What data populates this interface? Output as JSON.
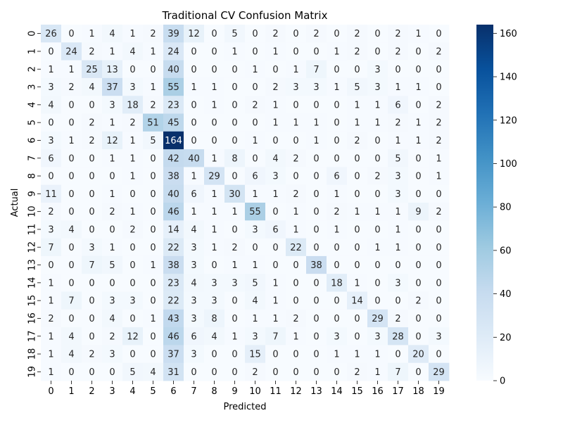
{
  "chart_data": {
    "type": "heatmap",
    "title": "Traditional CV Confusion Matrix",
    "xlabel": "Predicted",
    "ylabel": "Actual",
    "x_categories": [
      "0",
      "1",
      "2",
      "3",
      "4",
      "5",
      "6",
      "7",
      "8",
      "9",
      "10",
      "11",
      "12",
      "13",
      "14",
      "15",
      "16",
      "17",
      "18",
      "19"
    ],
    "y_categories": [
      "0",
      "1",
      "2",
      "3",
      "4",
      "5",
      "6",
      "7",
      "8",
      "9",
      "10",
      "11",
      "12",
      "13",
      "14",
      "15",
      "16",
      "17",
      "18",
      "19"
    ],
    "values": [
      [
        26,
        0,
        1,
        4,
        1,
        2,
        39,
        12,
        0,
        5,
        0,
        2,
        0,
        2,
        0,
        2,
        0,
        2,
        1,
        0
      ],
      [
        0,
        24,
        2,
        1,
        4,
        1,
        24,
        0,
        0,
        1,
        0,
        1,
        0,
        0,
        1,
        2,
        0,
        2,
        0,
        2
      ],
      [
        1,
        1,
        25,
        13,
        0,
        0,
        40,
        0,
        0,
        0,
        1,
        0,
        1,
        7,
        0,
        0,
        3,
        0,
        0,
        0
      ],
      [
        3,
        2,
        4,
        37,
        3,
        1,
        55,
        1,
        1,
        0,
        0,
        2,
        3,
        3,
        1,
        5,
        3,
        1,
        1,
        0
      ],
      [
        4,
        0,
        0,
        3,
        18,
        2,
        23,
        0,
        1,
        0,
        2,
        1,
        0,
        0,
        0,
        1,
        1,
        6,
        0,
        2
      ],
      [
        0,
        0,
        2,
        1,
        2,
        51,
        45,
        0,
        0,
        0,
        0,
        1,
        1,
        1,
        0,
        1,
        1,
        2,
        1,
        2
      ],
      [
        3,
        1,
        2,
        12,
        1,
        5,
        164,
        0,
        0,
        0,
        1,
        0,
        0,
        1,
        0,
        2,
        0,
        1,
        1,
        2
      ],
      [
        6,
        0,
        0,
        1,
        1,
        0,
        42,
        40,
        1,
        8,
        0,
        4,
        2,
        0,
        0,
        0,
        0,
        5,
        0,
        1
      ],
      [
        0,
        0,
        0,
        0,
        1,
        0,
        38,
        1,
        29,
        0,
        6,
        3,
        0,
        0,
        6,
        0,
        2,
        3,
        0,
        1
      ],
      [
        11,
        0,
        0,
        1,
        0,
        0,
        40,
        6,
        1,
        30,
        1,
        1,
        2,
        0,
        1,
        0,
        0,
        3,
        0,
        0
      ],
      [
        2,
        0,
        0,
        2,
        1,
        0,
        46,
        1,
        1,
        1,
        55,
        0,
        1,
        0,
        2,
        1,
        1,
        1,
        9,
        2
      ],
      [
        3,
        4,
        0,
        0,
        2,
        0,
        14,
        4,
        1,
        0,
        3,
        6,
        1,
        0,
        1,
        0,
        0,
        1,
        0,
        0
      ],
      [
        7,
        0,
        3,
        1,
        0,
        0,
        22,
        3,
        1,
        2,
        0,
        0,
        22,
        0,
        0,
        0,
        1,
        1,
        0,
        0
      ],
      [
        0,
        0,
        7,
        5,
        0,
        1,
        38,
        3,
        0,
        1,
        1,
        0,
        0,
        38,
        0,
        0,
        0,
        0,
        0,
        0
      ],
      [
        1,
        0,
        0,
        0,
        0,
        0,
        23,
        4,
        3,
        3,
        5,
        1,
        0,
        0,
        18,
        1,
        0,
        3,
        0,
        0
      ],
      [
        1,
        7,
        0,
        3,
        3,
        0,
        22,
        3,
        3,
        0,
        4,
        1,
        0,
        0,
        0,
        14,
        0,
        0,
        2,
        0
      ],
      [
        2,
        0,
        0,
        4,
        0,
        1,
        43,
        3,
        8,
        0,
        1,
        1,
        2,
        0,
        0,
        0,
        29,
        2,
        0,
        0
      ],
      [
        1,
        4,
        0,
        2,
        12,
        0,
        46,
        6,
        4,
        1,
        3,
        7,
        1,
        0,
        3,
        0,
        3,
        28,
        0,
        3
      ],
      [
        1,
        4,
        2,
        3,
        0,
        0,
        37,
        3,
        0,
        0,
        15,
        0,
        0,
        0,
        1,
        1,
        1,
        0,
        20,
        0
      ],
      [
        1,
        0,
        0,
        0,
        5,
        4,
        31,
        0,
        0,
        0,
        2,
        0,
        0,
        0,
        0,
        2,
        1,
        7,
        0,
        29
      ]
    ],
    "colorscale": "Blues",
    "vmin": 0,
    "vmax": 164,
    "colorbar_ticks": [
      0,
      20,
      40,
      60,
      80,
      100,
      120,
      140,
      160
    ],
    "grid": false,
    "legend": "colorbar-right",
    "annotations": "cell values"
  }
}
